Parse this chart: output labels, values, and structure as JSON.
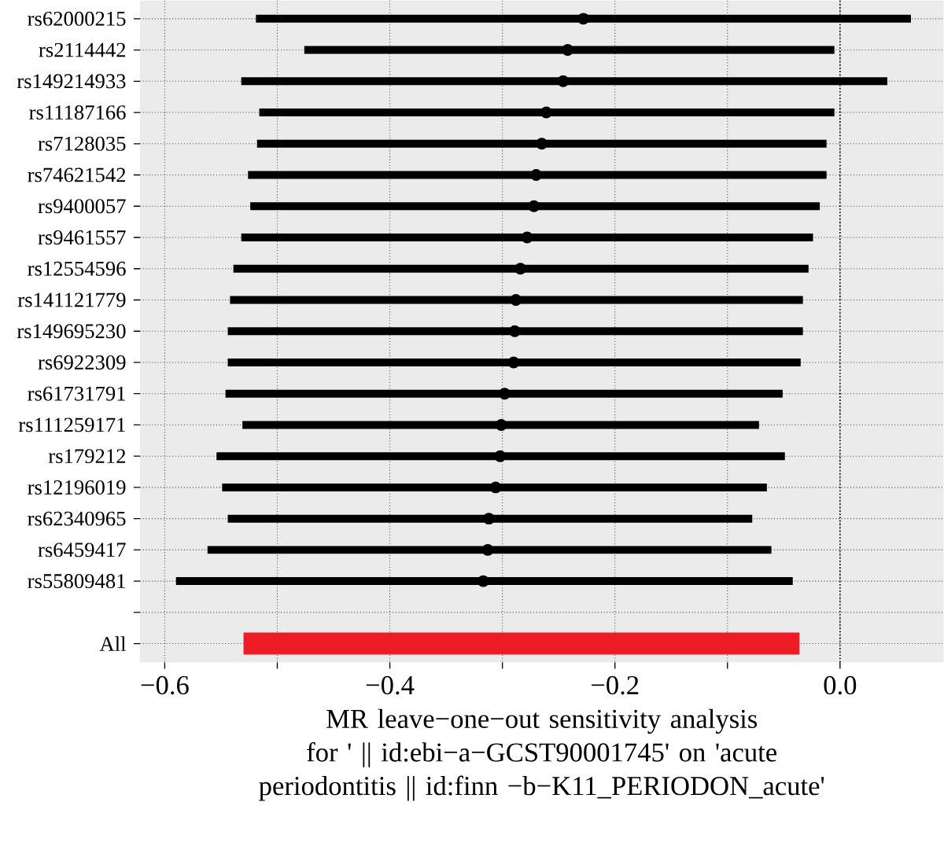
{
  "chart_data": {
    "type": "bar",
    "orientation": "horizontal",
    "xlabel": "MR leave−one−out sensitivity analysis for ' || id:ebi−a−GCST90001745' on 'acute periodontitis || id:finn −b−K11_PERIODON_acute'",
    "categories": [
      "rs62000215",
      "rs2114442",
      "rs149214933",
      "rs11187166",
      "rs7128035",
      "rs74621542",
      "rs9400057",
      "rs9461557",
      "rs12554596",
      "rs141121779",
      "rs149695230",
      "rs6922309",
      "rs61731791",
      "rs111259171",
      "rs179212",
      "rs12196019",
      "rs62340965",
      "rs6459417",
      "rs55809481",
      null,
      "All"
    ],
    "series": [
      {
        "color": "#000000",
        "base": [
          -0.519,
          -0.476,
          -0.532,
          -0.516,
          -0.518,
          -0.526,
          -0.524,
          -0.532,
          -0.539,
          -0.542,
          -0.544,
          -0.544,
          -0.546,
          -0.531,
          -0.554,
          -0.549,
          -0.544,
          -0.562,
          -0.59,
          null,
          null
        ],
        "values": [
          0.582,
          0.471,
          0.574,
          0.511,
          0.506,
          0.514,
          0.506,
          0.508,
          0.511,
          0.509,
          0.511,
          0.509,
          0.495,
          0.459,
          0.505,
          0.484,
          0.466,
          0.501,
          0.548,
          null,
          null
        ]
      },
      {
        "color": "#ee1c25",
        "base": [
          null,
          null,
          null,
          null,
          null,
          null,
          null,
          null,
          null,
          null,
          null,
          null,
          null,
          null,
          null,
          null,
          null,
          null,
          null,
          null,
          -0.53
        ],
        "values": [
          null,
          null,
          null,
          null,
          null,
          null,
          null,
          null,
          null,
          null,
          null,
          null,
          null,
          null,
          null,
          null,
          null,
          null,
          null,
          null,
          0.494
        ]
      },
      {
        "type": "scatter",
        "marker": "circle",
        "color": "#000000",
        "values": [
          -0.228,
          -0.242,
          -0.246,
          -0.261,
          -0.265,
          -0.27,
          -0.272,
          -0.278,
          -0.284,
          -0.288,
          -0.289,
          -0.29,
          -0.298,
          -0.301,
          -0.302,
          -0.306,
          -0.312,
          -0.313,
          -0.317,
          null,
          null
        ]
      }
    ],
    "xlim": [
      -0.622,
      0.092
    ],
    "xticks": [
      {
        "value": -0.6,
        "label": "−0.6"
      },
      {
        "value": -0.5,
        "label": null
      },
      {
        "value": -0.4,
        "label": "−0.4"
      },
      {
        "value": -0.3,
        "label": null
      },
      {
        "value": -0.2,
        "label": "−0.2"
      },
      {
        "value": -0.1,
        "label": null
      },
      {
        "value": 0,
        "label": "0.0"
      }
    ],
    "grid": true,
    "ref_lines": [
      {
        "axis": "x",
        "value": 0,
        "line_style": "dotted"
      }
    ]
  }
}
